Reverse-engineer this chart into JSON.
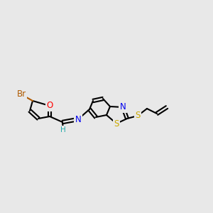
{
  "background_color": "#e8e8e8",
  "bond_color": "#000000",
  "atom_colors": {
    "Br": "#b05a00",
    "O": "#ff0000",
    "N": "#0000ee",
    "S": "#ccaa00",
    "H": "#22aaaa",
    "C": "#000000"
  },
  "figsize": [
    3.0,
    3.0
  ],
  "dpi": 100
}
